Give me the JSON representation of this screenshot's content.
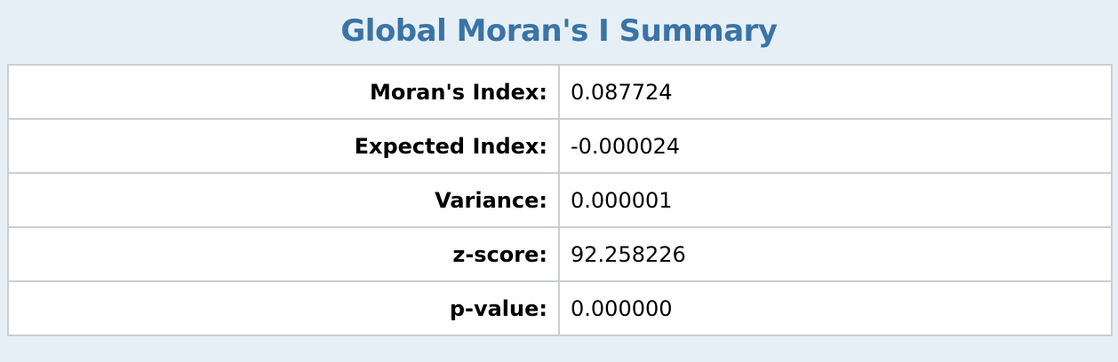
{
  "title": "Global Moran's I Summary",
  "rows": [
    {
      "label": "Moran's Index:",
      "value": "0.087724"
    },
    {
      "label": "Expected Index:",
      "value": "-0.000024"
    },
    {
      "label": "Variance:",
      "value": "0.000001"
    },
    {
      "label": "z-score:",
      "value": "92.258226"
    },
    {
      "label": "p-value:",
      "value": "0.000000"
    }
  ],
  "colors": {
    "title": "#3a74a6",
    "background": "#e7eff6",
    "table_background": "#ffffff",
    "border": "#c9ced3"
  }
}
